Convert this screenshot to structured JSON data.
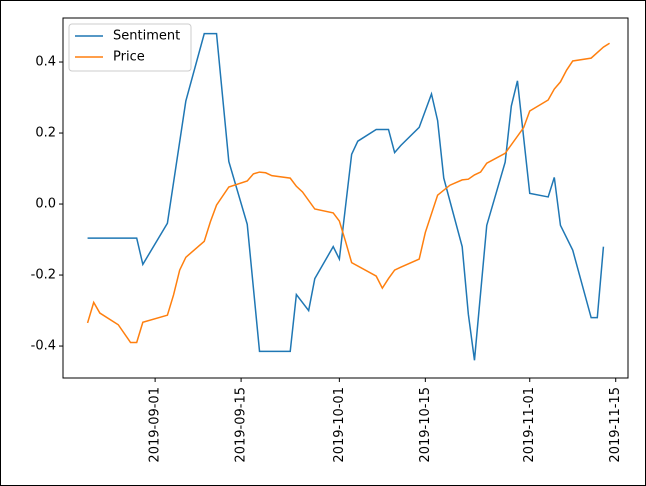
{
  "chart_data": {
    "type": "line",
    "series": [
      {
        "name": "Sentiment",
        "color": "#1f77b4",
        "x": [
          "2019-08-21",
          "2019-08-29",
          "2019-08-30",
          "2019-09-03",
          "2019-09-06",
          "2019-09-09",
          "2019-09-11",
          "2019-09-13",
          "2019-09-16",
          "2019-09-18",
          "2019-09-23",
          "2019-09-24",
          "2019-09-26",
          "2019-09-27",
          "2019-09-30",
          "2019-10-01",
          "2019-10-03",
          "2019-10-04",
          "2019-10-07",
          "2019-10-09",
          "2019-10-10",
          "2019-10-11",
          "2019-10-14",
          "2019-10-16",
          "2019-10-17",
          "2019-10-18",
          "2019-10-21",
          "2019-10-22",
          "2019-10-23",
          "2019-10-25",
          "2019-10-28",
          "2019-10-29",
          "2019-10-30",
          "2019-11-01",
          "2019-11-04",
          "2019-11-05",
          "2019-11-06",
          "2019-11-08",
          "2019-11-11",
          "2019-11-12",
          "2019-11-13"
        ],
        "values": [
          -0.096,
          -0.096,
          -0.17,
          -0.054,
          0.29,
          0.48,
          0.48,
          0.12,
          -0.057,
          -0.415,
          -0.415,
          -0.255,
          -0.3,
          -0.21,
          -0.12,
          -0.155,
          0.14,
          0.177,
          0.21,
          0.21,
          0.145,
          0.165,
          0.216,
          0.31,
          0.235,
          0.073,
          -0.12,
          -0.31,
          -0.44,
          -0.06,
          0.118,
          0.276,
          0.347,
          0.03,
          0.02,
          0.075,
          -0.06,
          -0.13,
          -0.32,
          -0.32,
          -0.12
        ]
      },
      {
        "name": "Price",
        "color": "#ff7f0e",
        "x": [
          "2019-08-21",
          "2019-08-22",
          "2019-08-23",
          "2019-08-26",
          "2019-08-28",
          "2019-08-29",
          "2019-08-30",
          "2019-09-03",
          "2019-09-04",
          "2019-09-05",
          "2019-09-06",
          "2019-09-09",
          "2019-09-10",
          "2019-09-11",
          "2019-09-13",
          "2019-09-16",
          "2019-09-17",
          "2019-09-18",
          "2019-09-19",
          "2019-09-20",
          "2019-09-23",
          "2019-09-24",
          "2019-09-25",
          "2019-09-27",
          "2019-09-30",
          "2019-10-01",
          "2019-10-02",
          "2019-10-03",
          "2019-10-07",
          "2019-10-08",
          "2019-10-09",
          "2019-10-10",
          "2019-10-11",
          "2019-10-14",
          "2019-10-15",
          "2019-10-17",
          "2019-10-19",
          "2019-10-21",
          "2019-10-22",
          "2019-10-23",
          "2019-10-24",
          "2019-10-25",
          "2019-10-28",
          "2019-10-31",
          "2019-11-01",
          "2019-11-04",
          "2019-11-05",
          "2019-11-06",
          "2019-11-07",
          "2019-11-08",
          "2019-11-11",
          "2019-11-13",
          "2019-11-14"
        ],
        "values": [
          -0.335,
          -0.277,
          -0.307,
          -0.34,
          -0.39,
          -0.39,
          -0.333,
          -0.313,
          -0.256,
          -0.186,
          -0.15,
          -0.105,
          -0.05,
          -0.003,
          0.048,
          0.065,
          0.085,
          0.09,
          0.088,
          0.08,
          0.073,
          0.05,
          0.034,
          -0.014,
          -0.025,
          -0.048,
          -0.105,
          -0.165,
          -0.203,
          -0.237,
          -0.21,
          -0.186,
          -0.178,
          -0.155,
          -0.08,
          0.025,
          0.053,
          0.068,
          0.07,
          0.082,
          0.09,
          0.115,
          0.143,
          0.215,
          0.262,
          0.293,
          0.324,
          0.344,
          0.377,
          0.403,
          0.411,
          0.442,
          0.453
        ]
      }
    ],
    "xlim": [
      "2019-08-17",
      "2019-11-17"
    ],
    "xticks": [
      "2019-09-01",
      "2019-09-15",
      "2019-10-01",
      "2019-10-15",
      "2019-11-01",
      "2019-11-15"
    ],
    "ylim": [
      -0.49,
      0.524
    ],
    "yticks": [
      -0.4,
      -0.2,
      {
        "value": 0,
        "label": "0.0"
      },
      0.2,
      0.4
    ],
    "legend": "upper left"
  }
}
